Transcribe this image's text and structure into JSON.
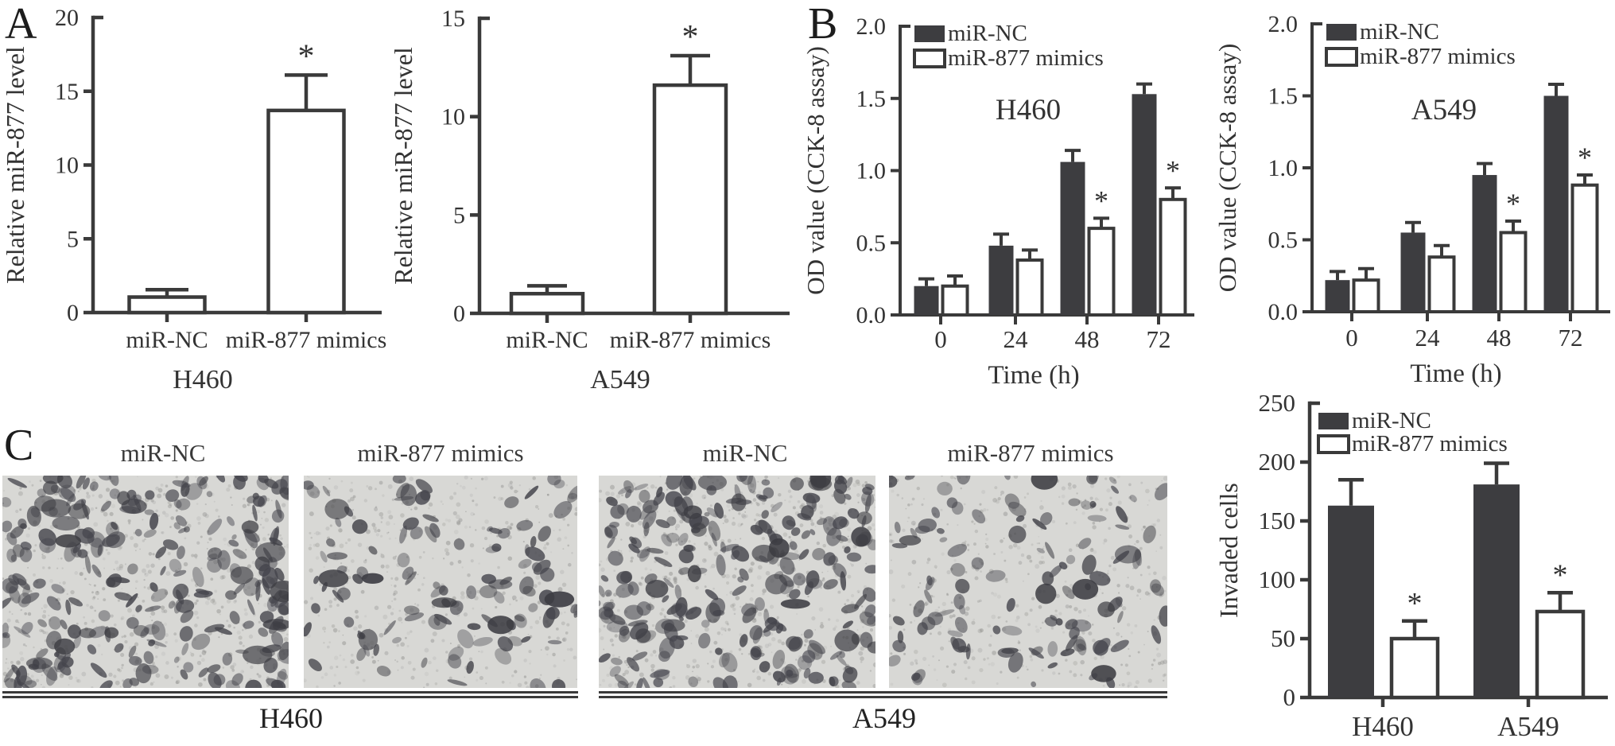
{
  "figure": {
    "panel_a_label": "A",
    "panel_b_label": "B",
    "panel_c_label": "C"
  },
  "colors": {
    "bar_dark": "#3d3d40",
    "bar_open_fill": "#ffffff",
    "axis": "#3a3a3a",
    "text": "#333333",
    "micrograph_bg": "#d8d8d5",
    "micrograph_cell": "#45454c"
  },
  "invasion_assay": {
    "column_labels": [
      "miR-NC",
      "miR-877 mimics",
      "miR-NC",
      "miR-877 mimics"
    ],
    "cell_lines": [
      "H460",
      "A549"
    ],
    "images": [
      {
        "name": "h460-mir-nc",
        "density": "dense"
      },
      {
        "name": "h460-mir-877-mimics",
        "density": "sparse"
      },
      {
        "name": "a549-mir-nc",
        "density": "dense"
      },
      {
        "name": "a549-mir-877-mimics",
        "density": "sparse"
      }
    ]
  },
  "chart_data": [
    {
      "id": "a-h460",
      "type": "bar",
      "title": "H460",
      "ylabel": "Relative miR-877 level",
      "categories": [
        "miR-NC",
        "miR-877 mimics"
      ],
      "values": [
        1.05,
        13.7
      ],
      "errors": [
        0.5,
        2.4
      ],
      "sig": [
        false,
        true
      ],
      "bar_style": "open",
      "ylim": [
        0,
        20
      ],
      "yticks": [
        "0",
        "5",
        "10",
        "15",
        "20"
      ],
      "grid": false
    },
    {
      "id": "a-a549",
      "type": "bar",
      "title": "A549",
      "ylabel": "Relative miR-877 level",
      "categories": [
        "miR-NC",
        "miR-877 mimics"
      ],
      "values": [
        1.0,
        11.6
      ],
      "errors": [
        0.4,
        1.5
      ],
      "sig": [
        false,
        true
      ],
      "bar_style": "open",
      "ylim": [
        0,
        15
      ],
      "yticks": [
        "0",
        "5",
        "10",
        "15"
      ],
      "grid": false
    },
    {
      "id": "b-h460",
      "type": "grouped-bar",
      "title": "H460",
      "ylabel": "OD value (CCK-8 assay)",
      "xlabel": "Time (h)",
      "categories": [
        "0",
        "24",
        "48",
        "72"
      ],
      "series": [
        {
          "name": "miR-NC",
          "fill": "dark",
          "values": [
            0.2,
            0.48,
            1.06,
            1.53
          ],
          "errors": [
            0.05,
            0.08,
            0.08,
            0.07
          ],
          "sig": [
            false,
            false,
            false,
            false
          ]
        },
        {
          "name": "miR-877 mimics",
          "fill": "open",
          "values": [
            0.2,
            0.38,
            0.6,
            0.8
          ],
          "errors": [
            0.07,
            0.07,
            0.07,
            0.08
          ],
          "sig": [
            false,
            false,
            true,
            true
          ]
        }
      ],
      "ylim": [
        0,
        2.0
      ],
      "yticks": [
        "0.0",
        "0.5",
        "1.0",
        "1.5",
        "2.0"
      ],
      "legend_position": "top-left",
      "grid": false
    },
    {
      "id": "b-a549",
      "type": "grouped-bar",
      "title": "A549",
      "ylabel": "OD value (CCK-8 assay)",
      "xlabel": "Time (h)",
      "categories": [
        "0",
        "24",
        "48",
        "72"
      ],
      "series": [
        {
          "name": "miR-NC",
          "fill": "dark",
          "values": [
            0.22,
            0.55,
            0.95,
            1.5
          ],
          "errors": [
            0.06,
            0.07,
            0.08,
            0.08
          ],
          "sig": [
            false,
            false,
            false,
            false
          ]
        },
        {
          "name": "miR-877 mimics",
          "fill": "open",
          "values": [
            0.22,
            0.38,
            0.55,
            0.88
          ],
          "errors": [
            0.08,
            0.08,
            0.08,
            0.07
          ],
          "sig": [
            false,
            false,
            true,
            true
          ]
        }
      ],
      "ylim": [
        0,
        2.0
      ],
      "yticks": [
        "0.0",
        "0.5",
        "1.0",
        "1.5",
        "2.0"
      ],
      "legend_position": "top-left",
      "grid": false
    },
    {
      "id": "c-invasion",
      "type": "grouped-bar",
      "title": "",
      "ylabel": "Invaded cells",
      "xlabel": "",
      "categories": [
        "H460",
        "A549"
      ],
      "series": [
        {
          "name": "miR-NC",
          "fill": "dark",
          "values": [
            163,
            181
          ],
          "errors": [
            22,
            18
          ],
          "sig": [
            false,
            false
          ]
        },
        {
          "name": "miR-877 mimics",
          "fill": "open",
          "values": [
            50,
            73
          ],
          "errors": [
            15,
            16
          ],
          "sig": [
            true,
            true
          ]
        }
      ],
      "ylim": [
        0,
        250
      ],
      "yticks": [
        "0",
        "50",
        "100",
        "150",
        "200",
        "250"
      ],
      "legend_position": "top-left",
      "grid": false
    }
  ]
}
